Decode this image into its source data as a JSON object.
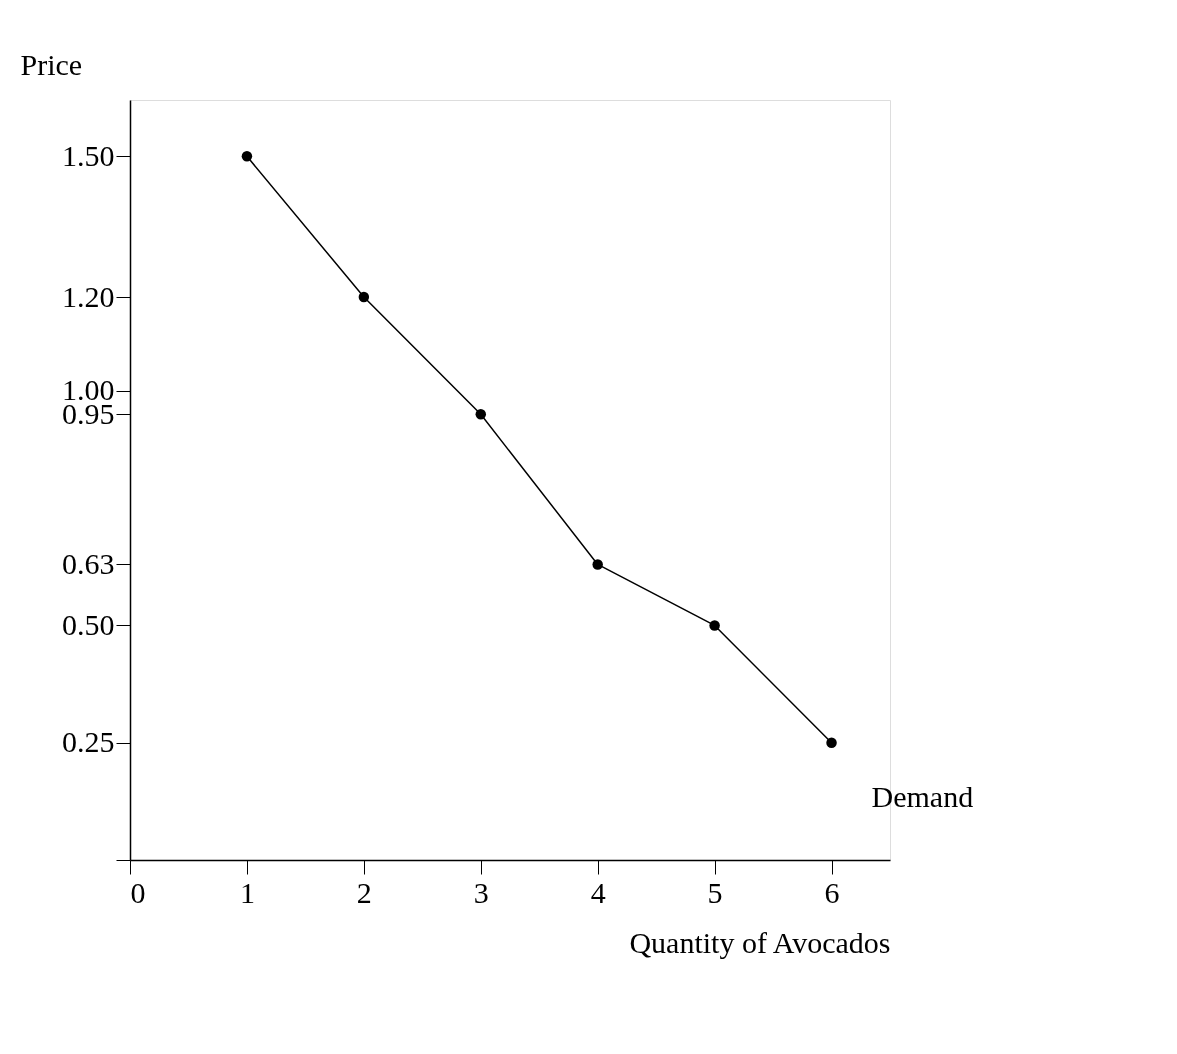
{
  "chart_data": {
    "type": "line",
    "xlabel": "Quantity of Avocados",
    "ylabel": "Price",
    "x": [
      1,
      2,
      3,
      4,
      5,
      6
    ],
    "series": [
      {
        "name": "Demand",
        "color": "#000000",
        "values": [
          1.5,
          1.2,
          0.95,
          0.63,
          0.5,
          0.25
        ]
      }
    ],
    "xlim": [
      0,
      6.5
    ],
    "xticks": [
      0,
      1,
      2,
      3,
      4,
      5,
      6
    ],
    "ylim": [
      0,
      1.62
    ],
    "yticks": [
      {
        "value": 0,
        "label": null
      },
      0.25,
      {
        "value": 0.5,
        "label": "0.50"
      },
      0.63,
      0.95,
      {
        "value": 1,
        "label": "1.00"
      },
      {
        "value": 1.2,
        "label": "1.20"
      },
      {
        "value": 1.5,
        "label": "1.50"
      }
    ],
    "marker": "circle",
    "line_style": "solid",
    "grid": false
  }
}
